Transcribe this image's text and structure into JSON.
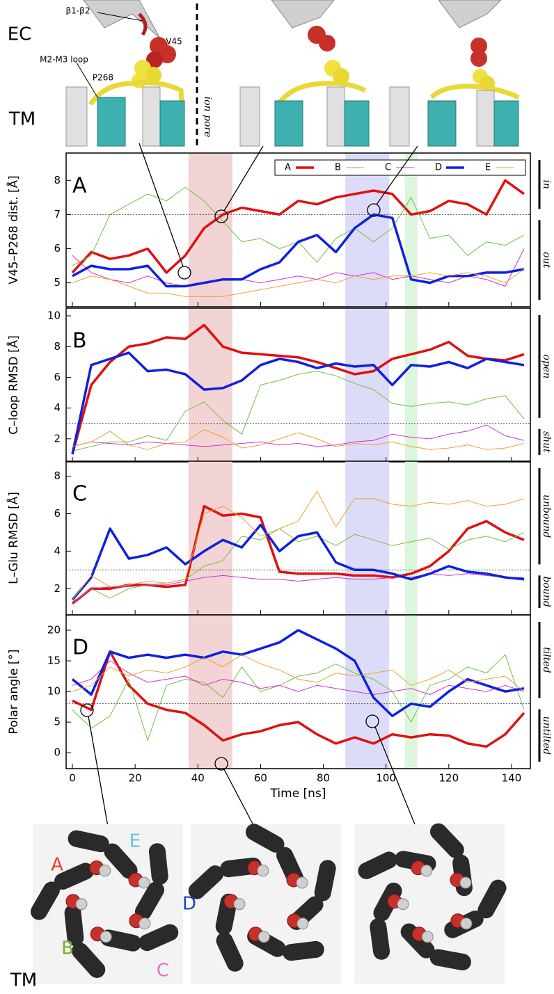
{
  "top_labels": {
    "ec": "EC",
    "tm": "TM",
    "b1b2": "β1-β2",
    "v45": "V45",
    "loop": "M2-M3 loop",
    "p268": "P268",
    "pore": "ion pore"
  },
  "bottom_labels": {
    "a": "A",
    "e": "E",
    "d": "D",
    "b": "B",
    "c": "C",
    "tm": "TM"
  },
  "chart_data": [
    {
      "type": "line",
      "panel_label": "A",
      "ylabel": "V45–P268 dist. [Å]",
      "x": [
        0,
        6,
        12,
        18,
        24,
        30,
        36,
        42,
        48,
        54,
        60,
        66,
        72,
        78,
        84,
        90,
        96,
        102,
        108,
        114,
        120,
        126,
        132,
        138,
        144
      ],
      "xlim": [
        -2,
        146
      ],
      "xticks": [
        0,
        20,
        40,
        60,
        80,
        100,
        120,
        140
      ],
      "ylim": [
        4.3,
        8.8
      ],
      "yticks": [
        5,
        6,
        7,
        8
      ],
      "threshold": 7,
      "region_labels": [
        "in",
        "out"
      ],
      "spans": [
        {
          "from": 37,
          "to": 51,
          "color": "#f2d4d4"
        },
        {
          "from": 87,
          "to": 101,
          "color": "#dcdcf8"
        },
        {
          "from": 106,
          "to": 110,
          "color": "#dcf6dc"
        }
      ],
      "legend": "top right",
      "series": [
        {
          "name": "A",
          "color": "#e01010",
          "line_width": 3.5,
          "values": [
            5.3,
            5.9,
            5.7,
            5.8,
            6.0,
            5.3,
            5.8,
            6.6,
            7.0,
            7.2,
            7.1,
            7.0,
            7.4,
            7.3,
            7.5,
            7.6,
            7.7,
            7.6,
            7.0,
            7.1,
            7.4,
            7.3,
            7.0,
            8.0,
            7.6
          ]
        },
        {
          "name": "B",
          "color": "#70c040",
          "line_width": 1,
          "values": [
            5.5,
            5.8,
            7.0,
            7.3,
            7.6,
            7.4,
            7.8,
            7.4,
            6.8,
            6.2,
            6.3,
            6.0,
            6.2,
            5.6,
            6.3,
            6.6,
            6.2,
            6.6,
            7.5,
            6.3,
            6.4,
            5.8,
            6.2,
            6.1,
            6.4
          ]
        },
        {
          "name": "C",
          "color": "#d030d0",
          "line_width": 1,
          "values": [
            5.8,
            5.3,
            5.1,
            5.0,
            5.2,
            5.0,
            4.9,
            5.0,
            5.1,
            5.1,
            5.0,
            5.1,
            5.2,
            5.1,
            5.3,
            5.2,
            5.3,
            5.1,
            5.2,
            5.1,
            5.0,
            5.2,
            5.1,
            4.9,
            6.0
          ]
        },
        {
          "name": "D",
          "color": "#1020e0",
          "line_width": 3.5,
          "values": [
            5.2,
            5.5,
            5.4,
            5.4,
            5.5,
            4.9,
            4.9,
            5.0,
            5.1,
            5.1,
            5.4,
            5.6,
            6.2,
            6.4,
            5.9,
            6.6,
            7.0,
            6.9,
            5.1,
            5.0,
            5.2,
            5.2,
            5.3,
            5.3,
            5.4
          ]
        },
        {
          "name": "E",
          "color": "#f0a030",
          "line_width": 1,
          "values": [
            5.0,
            5.2,
            5.1,
            4.9,
            4.7,
            4.7,
            4.6,
            4.6,
            4.6,
            4.7,
            4.8,
            4.9,
            5.0,
            5.1,
            5.0,
            5.2,
            5.1,
            5.2,
            5.2,
            5.3,
            5.2,
            5.3,
            5.2,
            5.0,
            5.4
          ]
        }
      ]
    },
    {
      "type": "line",
      "panel_label": "B",
      "ylabel": "C–loop RMSD [Å]",
      "x": [
        0,
        6,
        12,
        18,
        24,
        30,
        36,
        42,
        48,
        54,
        60,
        66,
        72,
        78,
        84,
        90,
        96,
        102,
        108,
        114,
        120,
        126,
        132,
        138,
        144
      ],
      "xlim": [
        -2,
        146
      ],
      "xticks": [
        0,
        20,
        40,
        60,
        80,
        100,
        120,
        140
      ],
      "ylim": [
        0.5,
        10.5
      ],
      "yticks": [
        2,
        4,
        6,
        8,
        10
      ],
      "threshold": 3,
      "region_labels": [
        "open",
        "shut"
      ],
      "spans": [
        {
          "from": 37,
          "to": 51,
          "color": "#f2d4d4"
        },
        {
          "from": 87,
          "to": 101,
          "color": "#dcdcf8"
        },
        {
          "from": 106,
          "to": 110,
          "color": "#dcf6dc"
        }
      ],
      "series": [
        {
          "color": "#e01010",
          "line_width": 3.5,
          "values": [
            1.0,
            5.5,
            7.0,
            8.0,
            8.2,
            8.6,
            8.5,
            9.4,
            8.0,
            7.6,
            7.5,
            7.4,
            7.3,
            7.0,
            6.6,
            6.2,
            6.4,
            7.2,
            7.5,
            7.8,
            8.3,
            7.4,
            7.2,
            7.1,
            7.5
          ]
        },
        {
          "color": "#70c040",
          "line_width": 1,
          "values": [
            1.2,
            1.5,
            1.8,
            1.8,
            2.2,
            1.9,
            3.8,
            4.4,
            3.2,
            2.3,
            5.5,
            5.8,
            6.2,
            6.4,
            6.1,
            5.6,
            5.2,
            4.3,
            4.1,
            4.3,
            4.4,
            4.2,
            4.6,
            4.8,
            3.3
          ]
        },
        {
          "color": "#d030d0",
          "line_width": 1,
          "values": [
            1.5,
            1.8,
            1.7,
            1.6,
            1.8,
            1.7,
            1.6,
            1.5,
            1.6,
            1.7,
            1.8,
            1.6,
            1.7,
            1.5,
            1.6,
            1.8,
            1.9,
            2.3,
            2.1,
            2.0,
            2.3,
            2.5,
            2.9,
            2.2,
            1.9
          ]
        },
        {
          "color": "#1020e0",
          "line_width": 3.5,
          "values": [
            1.0,
            6.8,
            7.2,
            7.6,
            6.4,
            6.5,
            6.2,
            5.2,
            5.3,
            5.8,
            6.8,
            7.2,
            7.0,
            6.6,
            6.9,
            6.7,
            6.8,
            5.5,
            6.8,
            6.7,
            7.0,
            6.6,
            7.2,
            7.0,
            6.8
          ]
        },
        {
          "color": "#f0a030",
          "line_width": 1,
          "values": [
            1.5,
            1.8,
            2.5,
            1.6,
            1.3,
            1.7,
            1.8,
            2.6,
            2.1,
            1.4,
            1.6,
            2.0,
            2.4,
            2.0,
            1.5,
            1.7,
            1.6,
            1.8,
            1.5,
            1.3,
            1.4,
            1.6,
            1.3,
            1.4,
            1.7
          ]
        }
      ]
    },
    {
      "type": "line",
      "panel_label": "C",
      "ylabel": "L–Glu RMSD [Å]",
      "x": [
        0,
        6,
        12,
        18,
        24,
        30,
        36,
        42,
        48,
        54,
        60,
        66,
        72,
        78,
        84,
        90,
        96,
        102,
        108,
        114,
        120,
        126,
        132,
        138,
        144
      ],
      "xlim": [
        -2,
        146
      ],
      "xticks": [
        0,
        20,
        40,
        60,
        80,
        100,
        120,
        140
      ],
      "ylim": [
        0.6,
        8.8
      ],
      "yticks": [
        2,
        4,
        6,
        8
      ],
      "threshold": 3,
      "region_labels": [
        "unbound",
        "bound"
      ],
      "spans": [
        {
          "from": 37,
          "to": 51,
          "color": "#f2d4d4"
        },
        {
          "from": 87,
          "to": 101,
          "color": "#dcdcf8"
        },
        {
          "from": 106,
          "to": 110,
          "color": "#dcf6dc"
        }
      ],
      "series": [
        {
          "color": "#e01010",
          "line_width": 3.5,
          "values": [
            1.2,
            2.0,
            2.0,
            2.2,
            2.2,
            2.1,
            2.2,
            6.4,
            5.9,
            6.0,
            5.8,
            2.9,
            2.8,
            2.8,
            2.8,
            2.7,
            2.7,
            2.6,
            2.8,
            3.2,
            4.0,
            5.2,
            5.6,
            5.0,
            4.6
          ]
        },
        {
          "color": "#70c040",
          "line_width": 1,
          "values": [
            1.3,
            2.0,
            1.5,
            2.0,
            2.2,
            2.3,
            2.5,
            3.2,
            3.5,
            4.8,
            4.6,
            5.2,
            4.5,
            4.8,
            4.3,
            4.9,
            4.6,
            4.3,
            4.5,
            4.7,
            4.1,
            4.6,
            4.8,
            4.5,
            5.0
          ]
        },
        {
          "color": "#d030d0",
          "line_width": 1,
          "values": [
            1.2,
            2.0,
            2.1,
            2.1,
            2.2,
            2.2,
            2.4,
            2.6,
            2.7,
            2.6,
            2.5,
            2.5,
            2.4,
            2.5,
            2.6,
            2.5,
            2.5,
            2.6,
            2.6,
            2.8,
            2.7,
            2.8,
            2.7,
            2.6,
            2.6
          ]
        },
        {
          "color": "#1020e0",
          "line_width": 3.5,
          "values": [
            1.4,
            2.6,
            5.2,
            3.6,
            3.8,
            4.2,
            3.3,
            4.0,
            4.6,
            4.2,
            5.4,
            4.0,
            4.8,
            5.0,
            3.4,
            3.0,
            3.0,
            2.8,
            2.5,
            2.8,
            3.2,
            2.9,
            2.8,
            2.6,
            2.5
          ]
        },
        {
          "color": "#f0a030",
          "line_width": 1,
          "values": [
            1.4,
            2.7,
            2.1,
            2.2,
            2.4,
            2.3,
            2.5,
            6.0,
            6.4,
            5.8,
            4.8,
            5.2,
            5.6,
            7.2,
            5.3,
            6.8,
            6.8,
            6.5,
            6.4,
            6.6,
            6.5,
            6.7,
            6.4,
            6.5,
            6.8
          ]
        }
      ]
    },
    {
      "type": "line",
      "panel_label": "D",
      "ylabel": "Polar angle [°]",
      "xlabel": "Time [ns]",
      "x": [
        0,
        6,
        12,
        18,
        24,
        30,
        36,
        42,
        48,
        54,
        60,
        66,
        72,
        78,
        84,
        90,
        96,
        102,
        108,
        114,
        120,
        126,
        132,
        138,
        144
      ],
      "xlim": [
        -2,
        146
      ],
      "xticks": [
        0,
        20,
        40,
        60,
        80,
        100,
        120,
        140
      ],
      "ylim": [
        -2.6,
        22.5
      ],
      "yticks": [
        0,
        5,
        10,
        15,
        20
      ],
      "threshold": 8,
      "region_labels": [
        "tilted",
        "untilted"
      ],
      "spans": [
        {
          "from": 37,
          "to": 51,
          "color": "#f2d4d4"
        },
        {
          "from": 87,
          "to": 101,
          "color": "#dcdcf8"
        },
        {
          "from": 106,
          "to": 110,
          "color": "#dcf6dc"
        }
      ],
      "series": [
        {
          "color": "#e01010",
          "line_width": 3.5,
          "values": [
            8.5,
            7.0,
            16.5,
            11.0,
            8.0,
            7.0,
            6.5,
            4.5,
            2.0,
            3.0,
            3.5,
            4.5,
            5.0,
            3.0,
            1.5,
            2.5,
            1.5,
            3.0,
            2.5,
            3.0,
            2.8,
            1.5,
            1.0,
            3.0,
            6.5
          ]
        },
        {
          "color": "#70c040",
          "line_width": 1,
          "values": [
            7.0,
            4.0,
            6.0,
            12.0,
            2.0,
            11.0,
            12.0,
            11.5,
            9.0,
            14.0,
            10.0,
            11.0,
            12.5,
            13.0,
            14.5,
            13.0,
            12.0,
            10.0,
            5.0,
            11.0,
            12.0,
            14.0,
            13.0,
            16.0,
            7.0
          ]
        },
        {
          "color": "#d030d0",
          "line_width": 1,
          "values": [
            11.0,
            12.0,
            15.0,
            13.0,
            11.5,
            12.0,
            12.5,
            11.0,
            12.0,
            11.5,
            10.5,
            11.0,
            10.0,
            11.0,
            10.5,
            10.0,
            9.5,
            10.0,
            10.5,
            9.5,
            11.0,
            10.5,
            10.0,
            11.0,
            10.0
          ]
        },
        {
          "color": "#1020e0",
          "line_width": 3.5,
          "values": [
            12.0,
            9.5,
            16.5,
            15.5,
            16.0,
            15.5,
            16.0,
            15.5,
            16.5,
            16.0,
            17.0,
            18.0,
            20.0,
            18.5,
            17.0,
            15.0,
            9.0,
            6.0,
            8.0,
            7.5,
            10.0,
            12.0,
            11.0,
            10.0,
            10.5
          ]
        },
        {
          "color": "#f0a030",
          "line_width": 1,
          "values": [
            10.0,
            11.0,
            14.0,
            12.5,
            13.5,
            13.0,
            14.0,
            15.5,
            14.0,
            16.0,
            14.5,
            13.5,
            12.0,
            11.5,
            13.0,
            12.5,
            13.0,
            13.5,
            11.0,
            12.0,
            13.5,
            11.5,
            12.0,
            12.5,
            10.0
          ]
        }
      ]
    }
  ]
}
